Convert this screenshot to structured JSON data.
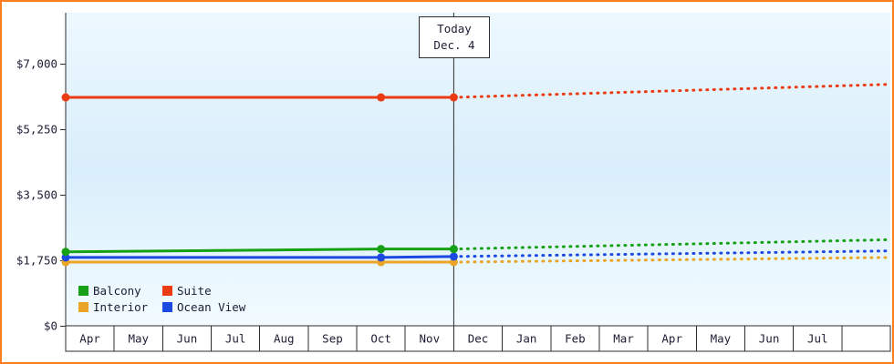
{
  "colors": {
    "border": "#ff7c1f",
    "axis": "#2e2e2e",
    "text": "#1d1d35",
    "plot_bg_top": "#edf8fe",
    "plot_bg_mid": "#d9eefb",
    "plot_bg_bottom": "#f2fbff",
    "cell_bg": "#ffffff"
  },
  "chart_data": {
    "type": "line",
    "x_categories": [
      "Apr",
      "May",
      "Jun",
      "Jul",
      "Aug",
      "Sep",
      "Oct",
      "Nov",
      "Dec",
      "Jan",
      "Feb",
      "Mar",
      "Apr",
      "May",
      "Jun",
      "Jul"
    ],
    "x_unit_count": 17,
    "ylim": [
      0,
      7000
    ],
    "yticks": [
      0,
      1750,
      3500,
      5250,
      7000
    ],
    "ytick_labels": [
      "$0",
      "$1,750",
      "$3,500",
      "$5,250",
      "$7,000"
    ],
    "grid": "off",
    "today": {
      "line1": "Today",
      "line2": "Dec. 4",
      "x": 8
    },
    "series": [
      {
        "name": "Interior",
        "color": "#eaa426",
        "solid_x": [
          0,
          6.5,
          8
        ],
        "solid_y": [
          1700,
          1700,
          1700
        ],
        "dotted_x": [
          8,
          17
        ],
        "dotted_y": [
          1700,
          1825
        ]
      },
      {
        "name": "Ocean View",
        "color": "#1c49e0",
        "solid_x": [
          0,
          6.5,
          8
        ],
        "solid_y": [
          1825,
          1825,
          1850
        ],
        "dotted_x": [
          8,
          17
        ],
        "dotted_y": [
          1850,
          2000
        ]
      },
      {
        "name": "Balcony",
        "color": "#16a016",
        "solid_x": [
          0,
          6.5,
          8
        ],
        "solid_y": [
          1975,
          2050,
          2050
        ],
        "dotted_x": [
          8,
          17
        ],
        "dotted_y": [
          2050,
          2300
        ]
      },
      {
        "name": "Suite",
        "color": "#ea3b14",
        "solid_x": [
          0,
          6.5,
          8
        ],
        "solid_y": [
          6100,
          6100,
          6100
        ],
        "dotted_x": [
          8,
          17
        ],
        "dotted_y": [
          6100,
          6450
        ]
      }
    ],
    "legend": {
      "position": "bottom-left",
      "rows": [
        [
          "Balcony",
          "Suite"
        ],
        [
          "Interior",
          "Ocean View"
        ]
      ]
    }
  }
}
